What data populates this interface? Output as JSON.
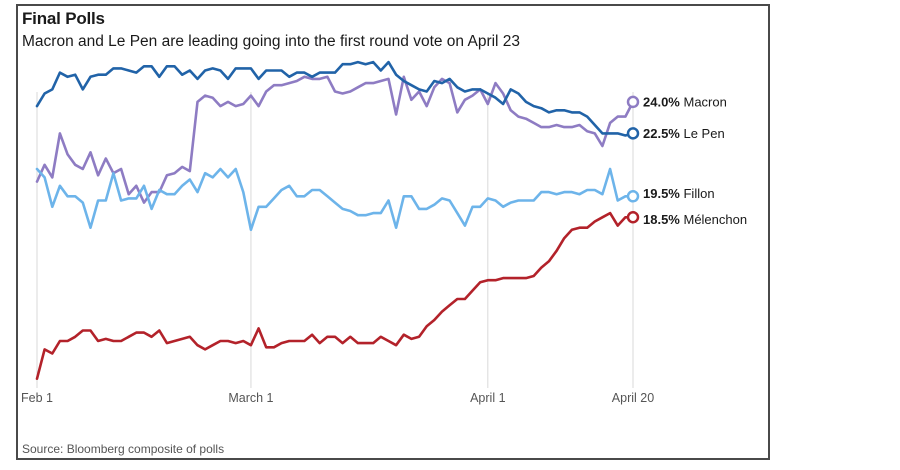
{
  "title": "Final Polls",
  "subtitle": "Macron and Le Pen are leading going into the first round vote on April 23",
  "source": "Source: Bloomberg composite of polls",
  "chart_data": {
    "type": "line",
    "x_ticks": [
      {
        "label": "Feb 1",
        "x": 0
      },
      {
        "label": "March 1",
        "x": 28
      },
      {
        "label": "April 1",
        "x": 59
      },
      {
        "label": "April 20",
        "x": 78
      }
    ],
    "ylim": [
      10.5,
      26
    ],
    "grid": "vertical",
    "series": [
      {
        "name": "Macron",
        "color": "#8e7cc3",
        "end_value": 24.0,
        "end_label_value": "24.0%",
        "x": [
          0,
          1,
          2,
          3,
          4,
          5,
          6,
          7,
          8,
          9,
          10,
          11,
          12,
          13,
          14,
          15,
          16,
          17,
          18,
          19,
          20,
          21,
          22,
          23,
          24,
          25,
          26,
          27,
          28,
          29,
          30,
          31,
          32,
          33,
          34,
          35,
          36,
          37,
          38,
          39,
          40,
          41,
          42,
          43,
          44,
          45,
          46,
          47,
          48,
          49,
          50,
          51,
          52,
          53,
          54,
          55,
          56,
          57,
          58,
          59,
          60,
          61,
          62,
          63,
          64,
          65,
          66,
          67,
          68,
          69,
          70,
          71,
          72,
          73,
          74,
          75,
          76,
          77,
          78
        ],
        "values": [
          20.2,
          21.0,
          20.4,
          22.5,
          21.5,
          21.0,
          20.8,
          21.6,
          20.5,
          21.3,
          20.6,
          20.8,
          19.6,
          20.0,
          19.2,
          19.7,
          19.7,
          20.5,
          20.6,
          20.9,
          20.7,
          24.0,
          24.3,
          24.2,
          23.8,
          24.0,
          23.8,
          23.9,
          24.3,
          23.8,
          24.5,
          24.8,
          24.8,
          24.9,
          25.0,
          25.2,
          25.1,
          25.1,
          25.2,
          24.5,
          24.4,
          24.5,
          24.7,
          24.9,
          24.9,
          25.0,
          25.1,
          23.4,
          25.2,
          24.1,
          24.5,
          23.8,
          24.7,
          25.1,
          24.9,
          23.5,
          24.1,
          24.3,
          24.6,
          23.9,
          24.9,
          24.4,
          23.6,
          23.3,
          23.2,
          23.0,
          22.8,
          22.8,
          22.9,
          22.8,
          22.8,
          22.9,
          22.6,
          22.5,
          21.9,
          23.0,
          23.3,
          23.3,
          24.0
        ]
      },
      {
        "name": "Le Pen",
        "color": "#2163a8",
        "end_value": 22.5,
        "end_label_value": "22.5%",
        "x": [
          0,
          1,
          2,
          3,
          4,
          5,
          6,
          7,
          8,
          9,
          10,
          11,
          12,
          13,
          14,
          15,
          16,
          17,
          18,
          19,
          20,
          21,
          22,
          23,
          24,
          25,
          26,
          27,
          28,
          29,
          30,
          31,
          32,
          33,
          34,
          35,
          36,
          37,
          38,
          39,
          40,
          41,
          42,
          43,
          44,
          45,
          46,
          47,
          48,
          49,
          50,
          51,
          52,
          53,
          54,
          55,
          56,
          57,
          58,
          59,
          60,
          61,
          62,
          63,
          64,
          65,
          66,
          67,
          68,
          69,
          70,
          71,
          72,
          73,
          74,
          75,
          76,
          77,
          78
        ],
        "values": [
          23.8,
          24.4,
          24.6,
          25.4,
          25.2,
          25.3,
          24.6,
          25.2,
          25.3,
          25.3,
          25.6,
          25.6,
          25.5,
          25.4,
          25.7,
          25.7,
          25.2,
          25.7,
          25.7,
          25.3,
          25.5,
          25.1,
          25.5,
          25.6,
          25.5,
          25.1,
          25.6,
          25.6,
          25.6,
          25.1,
          25.5,
          25.5,
          25.5,
          25.2,
          25.4,
          25.4,
          25.2,
          25.4,
          25.4,
          25.4,
          25.8,
          25.8,
          25.9,
          25.8,
          25.9,
          25.5,
          25.9,
          25.3,
          25.0,
          24.8,
          24.6,
          24.5,
          25.0,
          24.9,
          25.1,
          24.7,
          24.5,
          24.6,
          24.6,
          24.4,
          24.2,
          23.9,
          24.6,
          24.4,
          24.0,
          23.8,
          23.7,
          23.5,
          23.6,
          23.6,
          23.5,
          23.5,
          23.3,
          22.9,
          22.5,
          22.5,
          22.5,
          22.4,
          22.5
        ]
      },
      {
        "name": "Fillon",
        "color": "#6db4ea",
        "end_value": 19.5,
        "end_label_value": "19.5%",
        "x": [
          0,
          1,
          2,
          3,
          4,
          5,
          6,
          7,
          8,
          9,
          10,
          11,
          12,
          13,
          14,
          15,
          16,
          17,
          18,
          19,
          20,
          21,
          22,
          23,
          24,
          25,
          26,
          27,
          28,
          29,
          30,
          31,
          32,
          33,
          34,
          35,
          36,
          37,
          38,
          39,
          40,
          41,
          42,
          43,
          44,
          45,
          46,
          47,
          48,
          49,
          50,
          51,
          52,
          53,
          54,
          55,
          56,
          57,
          58,
          59,
          60,
          61,
          62,
          63,
          64,
          65,
          66,
          67,
          68,
          69,
          70,
          71,
          72,
          73,
          74,
          75,
          76,
          77,
          78
        ],
        "values": [
          20.8,
          20.4,
          19.0,
          20.0,
          19.5,
          19.5,
          19.2,
          18.0,
          19.3,
          19.3,
          20.6,
          19.3,
          19.4,
          19.4,
          20.0,
          18.9,
          19.8,
          19.6,
          19.6,
          20.0,
          20.3,
          19.7,
          20.6,
          20.4,
          20.8,
          20.4,
          20.8,
          19.7,
          17.9,
          19.0,
          19.0,
          19.4,
          19.8,
          20.0,
          19.5,
          19.5,
          19.8,
          19.8,
          19.5,
          19.2,
          18.9,
          18.8,
          18.6,
          18.6,
          18.7,
          18.7,
          19.3,
          18.0,
          19.5,
          19.5,
          18.9,
          18.9,
          19.1,
          19.4,
          19.3,
          18.7,
          18.1,
          19.0,
          19.0,
          19.4,
          19.3,
          19.0,
          19.2,
          19.3,
          19.3,
          19.3,
          19.7,
          19.7,
          19.6,
          19.7,
          19.7,
          19.6,
          19.8,
          19.8,
          19.6,
          20.8,
          19.3,
          19.5,
          19.5
        ]
      },
      {
        "name": "Mélenchon",
        "color": "#b3222a",
        "end_value": 18.5,
        "end_label_value": "18.5%",
        "x": [
          0,
          1,
          2,
          3,
          4,
          5,
          6,
          7,
          8,
          9,
          10,
          11,
          12,
          13,
          14,
          15,
          16,
          17,
          18,
          19,
          20,
          21,
          22,
          23,
          24,
          25,
          26,
          27,
          28,
          29,
          30,
          31,
          32,
          33,
          34,
          35,
          36,
          37,
          38,
          39,
          40,
          41,
          42,
          43,
          44,
          45,
          46,
          47,
          48,
          49,
          50,
          51,
          52,
          53,
          54,
          55,
          56,
          57,
          58,
          59,
          60,
          61,
          62,
          63,
          64,
          65,
          66,
          67,
          68,
          69,
          70,
          71,
          72,
          73,
          74,
          75,
          76,
          77,
          78
        ],
        "values": [
          10.8,
          12.2,
          12.0,
          12.6,
          12.6,
          12.8,
          13.1,
          13.1,
          12.6,
          12.7,
          12.6,
          12.6,
          12.8,
          13.0,
          13.0,
          12.8,
          13.1,
          12.5,
          12.6,
          12.7,
          12.8,
          12.4,
          12.2,
          12.4,
          12.6,
          12.6,
          12.5,
          12.6,
          12.4,
          13.2,
          12.3,
          12.3,
          12.5,
          12.6,
          12.6,
          12.6,
          12.9,
          12.5,
          12.8,
          12.8,
          12.5,
          12.8,
          12.5,
          12.5,
          12.5,
          12.8,
          12.6,
          12.4,
          12.9,
          12.7,
          12.8,
          13.3,
          13.6,
          14.0,
          14.3,
          14.6,
          14.6,
          15.0,
          15.4,
          15.5,
          15.5,
          15.6,
          15.6,
          15.6,
          15.6,
          15.7,
          16.1,
          16.4,
          16.9,
          17.5,
          17.9,
          18.0,
          18.0,
          18.3,
          18.5,
          18.7,
          18.1,
          18.5,
          18.5
        ]
      }
    ]
  }
}
